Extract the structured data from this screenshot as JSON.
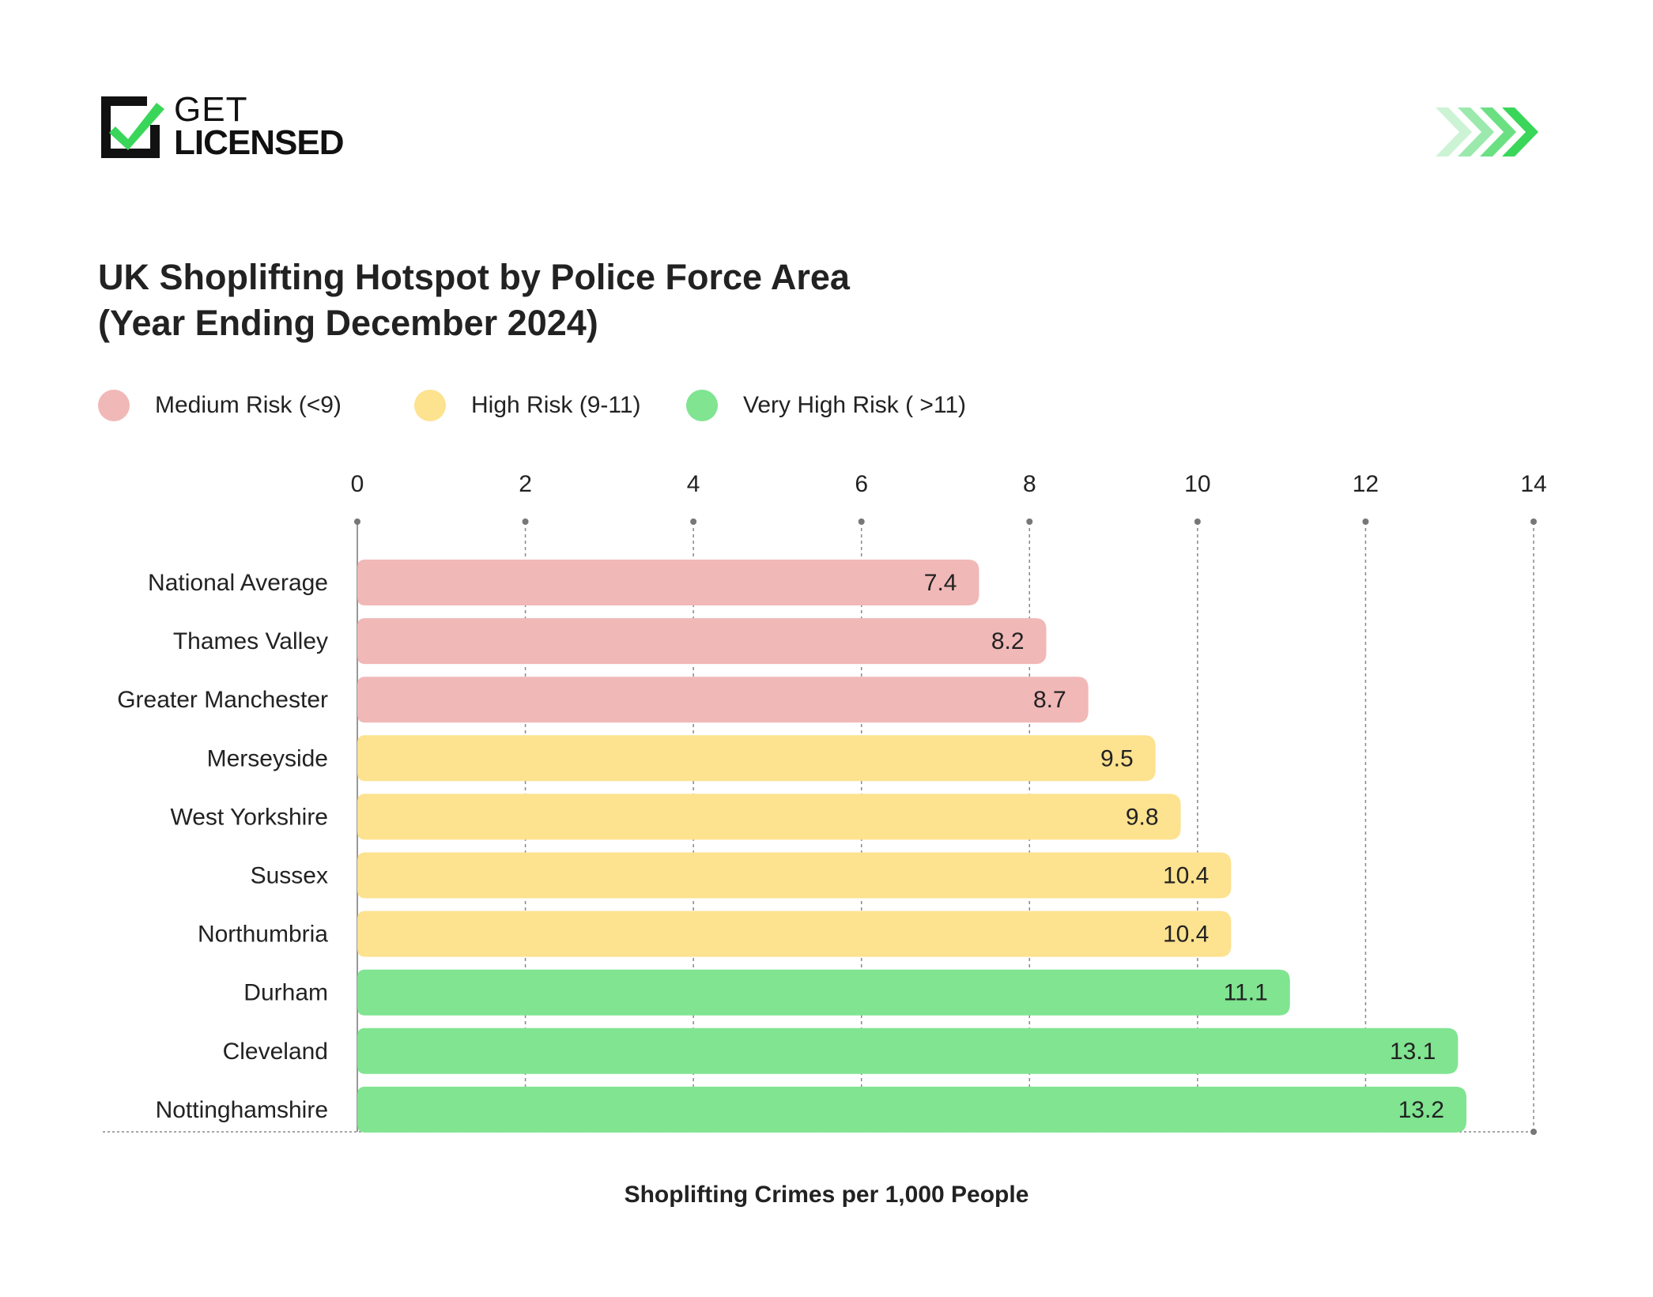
{
  "logo": {
    "line1": "GET",
    "line2": "LICENSED"
  },
  "colors": {
    "medium": "#F1B8B8",
    "high": "#FDE28F",
    "very_high": "#80E491",
    "brand_green": "#3AD65A"
  },
  "legend": [
    {
      "label": "Medium Risk (<9)",
      "color": "#F1B8B8"
    },
    {
      "label": "High Risk (9-11)",
      "color": "#FDE28F"
    },
    {
      "label": "Very High Risk ( >11)",
      "color": "#80E491"
    }
  ],
  "chart_data": {
    "type": "bar",
    "orientation": "horizontal",
    "title": "UK Shoplifting Hotspot by Police Force Area\n(Year Ending December 2024)",
    "title_lines": [
      "UK Shoplifting Hotspot by Police Force Area",
      "(Year Ending December 2024)"
    ],
    "xlabel": "Shoplifting Crimes per 1,000 People",
    "ylabel": "",
    "xlim": [
      0,
      14
    ],
    "xticks": [
      "0",
      "2",
      "4",
      "6",
      "8",
      "10",
      "12",
      "14"
    ],
    "grid": "vertical dotted",
    "axis_position": "top",
    "legend_position": "top-left",
    "categories": [
      "National Average",
      "Thames Valley",
      "Greater Manchester",
      "Merseyside",
      "West Yorkshire",
      "Sussex",
      "Northumbria",
      "Durham",
      "Cleveland",
      "Nottinghamshire"
    ],
    "values": [
      7.4,
      8.2,
      8.7,
      9.5,
      9.8,
      10.4,
      10.4,
      11.1,
      13.1,
      13.2
    ],
    "value_labels": [
      "7.4",
      "8.2",
      "8.7",
      "9.5",
      "9.8",
      "10.4",
      "10.4",
      "11.1",
      "13.1",
      "13.2"
    ],
    "risk": [
      "medium",
      "medium",
      "medium",
      "high",
      "high",
      "high",
      "high",
      "very_high",
      "very_high",
      "very_high"
    ]
  }
}
